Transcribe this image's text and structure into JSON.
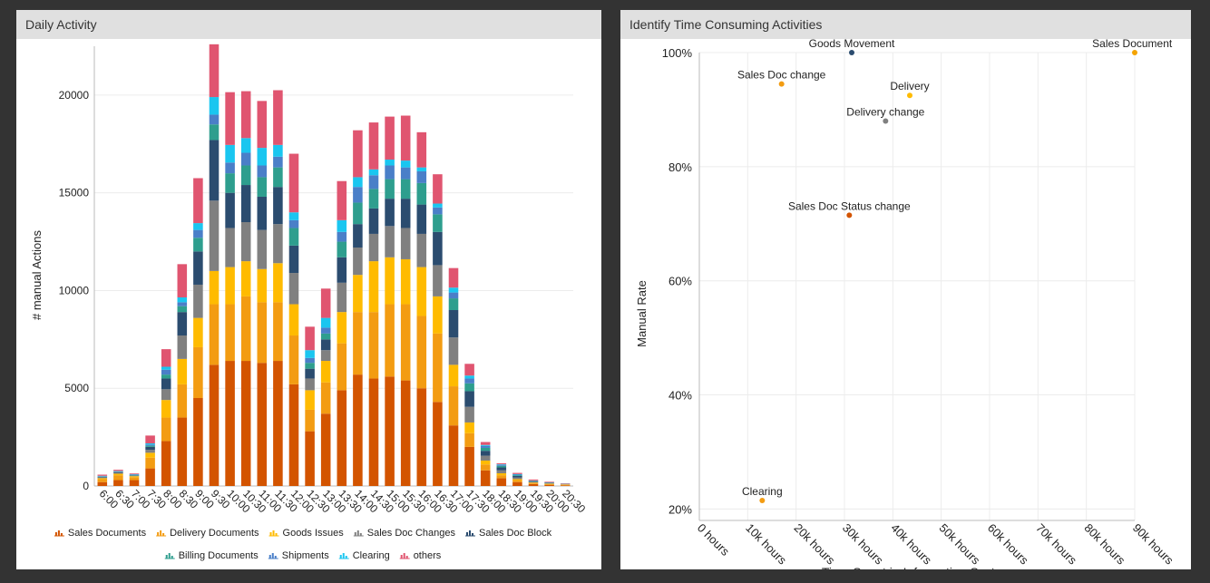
{
  "panels": {
    "left_title": "Daily Activity",
    "right_title": "Identify Time Consuming Activities"
  },
  "chart_data": [
    {
      "type": "bar",
      "stacked": true,
      "ylabel": "# manual Actions",
      "ylim": [
        0,
        22500
      ],
      "yticks": [
        0,
        5000,
        10000,
        15000,
        20000
      ],
      "grid": "horizontal",
      "legend_position": "bottom",
      "categories": [
        "6:00",
        "6:30",
        "7:00",
        "7:30",
        "8:00",
        "8:30",
        "9:00",
        "9:30",
        "10:00",
        "10:30",
        "11:00",
        "11:30",
        "12:00",
        "12:30",
        "13:00",
        "13:30",
        "14:00",
        "14:30",
        "15:00",
        "15:30",
        "16:00",
        "16:30",
        "17:00",
        "17:30",
        "18:00",
        "18:30",
        "19:00",
        "19:30",
        "20:00",
        "20:30"
      ],
      "series": [
        {
          "name": "Sales Documents",
          "color": "#d35400",
          "values": [
            200,
            300,
            300,
            900,
            2300,
            3500,
            4500,
            6200,
            6400,
            6400,
            6300,
            6400,
            5200,
            2800,
            3700,
            4900,
            5700,
            5500,
            5600,
            5400,
            5000,
            4300,
            3100,
            2000,
            800,
            400,
            200,
            100,
            50,
            30
          ]
        },
        {
          "name": "Delivery Documents",
          "color": "#f39c12",
          "values": [
            150,
            250,
            150,
            550,
            1200,
            1700,
            2600,
            3100,
            2900,
            3300,
            3100,
            3000,
            2500,
            1100,
            1600,
            2400,
            3200,
            3400,
            3700,
            3900,
            3700,
            3500,
            2000,
            700,
            300,
            150,
            100,
            50,
            50,
            30
          ]
        },
        {
          "name": "Goods Issues",
          "color": "#ffbb00",
          "values": [
            50,
            80,
            50,
            250,
            900,
            1300,
            1500,
            1700,
            1900,
            1800,
            1700,
            2000,
            1600,
            1000,
            1100,
            1600,
            1900,
            2600,
            2400,
            2300,
            2500,
            1900,
            1100,
            550,
            200,
            100,
            50,
            30,
            20,
            20
          ]
        },
        {
          "name": "Sales Doc Changes",
          "color": "#808080",
          "values": [
            30,
            40,
            20,
            150,
            550,
            1200,
            1700,
            3600,
            2000,
            2000,
            2000,
            2000,
            1600,
            600,
            550,
            1500,
            1400,
            1400,
            1600,
            1600,
            1700,
            1600,
            1400,
            800,
            250,
            150,
            80,
            30,
            20,
            10
          ]
        },
        {
          "name": "Sales Doc Block",
          "color": "#2b4c6f",
          "values": [
            30,
            40,
            20,
            150,
            550,
            1200,
            1700,
            3100,
            1800,
            1900,
            1700,
            1900,
            1400,
            500,
            550,
            1300,
            1200,
            1300,
            1400,
            1500,
            1500,
            1700,
            1400,
            800,
            250,
            150,
            80,
            30,
            20,
            10
          ]
        },
        {
          "name": "Billing Documents",
          "color": "#2e9e8e",
          "values": [
            20,
            20,
            20,
            60,
            200,
            300,
            700,
            800,
            1000,
            1000,
            1000,
            1000,
            900,
            300,
            300,
            800,
            1100,
            1000,
            1000,
            1000,
            1100,
            900,
            600,
            400,
            150,
            80,
            40,
            20,
            10,
            5
          ]
        },
        {
          "name": "Shipments",
          "color": "#4a7fc8",
          "values": [
            20,
            20,
            20,
            60,
            250,
            200,
            400,
            500,
            550,
            650,
            600,
            550,
            400,
            250,
            300,
            500,
            800,
            700,
            700,
            600,
            600,
            350,
            300,
            250,
            100,
            50,
            30,
            10,
            10,
            5
          ]
        },
        {
          "name": "Clearing",
          "color": "#1ac6f0",
          "values": [
            20,
            20,
            20,
            60,
            150,
            250,
            350,
            900,
            900,
            750,
            900,
            600,
            400,
            400,
            500,
            600,
            500,
            300,
            300,
            350,
            200,
            200,
            250,
            150,
            50,
            30,
            30,
            10,
            10,
            5
          ]
        },
        {
          "name": "others",
          "color": "#e05570",
          "values": [
            60,
            60,
            40,
            400,
            900,
            1700,
            2300,
            2700,
            2700,
            2400,
            2400,
            2800,
            3000,
            1200,
            1500,
            2000,
            2400,
            2400,
            2200,
            2300,
            1800,
            1500,
            1000,
            600,
            150,
            50,
            60,
            50,
            30,
            20
          ]
        }
      ]
    },
    {
      "type": "scatter",
      "xlabel": "Time Spent in Information System",
      "ylabel": "Manual Rate",
      "xlim": [
        0,
        90
      ],
      "xunit": "k hours",
      "xticks": [
        "0 hours",
        "10k hours",
        "20k hours",
        "30k hours",
        "40k hours",
        "50k hours",
        "60k hours",
        "70k hours",
        "80k hours",
        "90k hours"
      ],
      "ylim": [
        18,
        100
      ],
      "yticks": [
        "20%",
        "40%",
        "60%",
        "80%",
        "100%"
      ],
      "grid": "both",
      "points": [
        {
          "label": "Goods Movement",
          "x": 31.5,
          "y": 100,
          "color": "#2b4c6f"
        },
        {
          "label": "Sales Document",
          "x": 90,
          "y": 100,
          "color": "#f4a300"
        },
        {
          "label": "Sales Doc change",
          "x": 17,
          "y": 94.5,
          "color": "#f39c12"
        },
        {
          "label": "Delivery",
          "x": 43.5,
          "y": 92.5,
          "color": "#ffbb00"
        },
        {
          "label": "Delivery change",
          "x": 38.5,
          "y": 88,
          "color": "#808080"
        },
        {
          "label": "Sales Doc Status change",
          "x": 31,
          "y": 71.5,
          "color": "#d35400"
        },
        {
          "label": "Clearing",
          "x": 13,
          "y": 21.5,
          "color": "#f39c12"
        }
      ]
    }
  ]
}
